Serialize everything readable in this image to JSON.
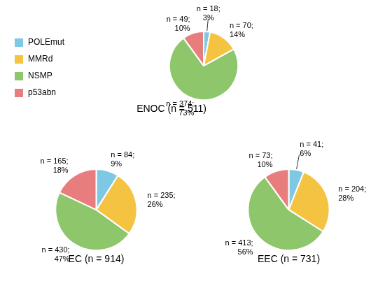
{
  "chart_data": [
    {
      "type": "pie",
      "title": "ENOC (n = 511)",
      "categories": [
        "POLEmut",
        "MMRd",
        "NSMP",
        "p53abn"
      ],
      "values": [
        3,
        14,
        73,
        10
      ],
      "colors": [
        "#7ec8e3",
        "#f5c342",
        "#8dc66b",
        "#e87d7d"
      ],
      "data_labels": true,
      "value_labels": [
        "n = 18;\n3%",
        "n = 70;\n14%",
        "n = 374;\n73%",
        "n = 49;\n10%"
      ],
      "legend": "upper left"
    },
    {
      "type": "pie",
      "title": "EC (n = 914)",
      "categories": [
        "POLEmut",
        "MMRd",
        "NSMP",
        "p53abn"
      ],
      "values": [
        9,
        26,
        47,
        18
      ],
      "colors": [
        "#7ec8e3",
        "#f5c342",
        "#8dc66b",
        "#e87d7d"
      ],
      "data_labels": true,
      "value_labels": [
        "n = 84;\n9%",
        "n = 235;\n26%",
        "n = 430;\n47%",
        "n = 165;\n18%"
      ]
    },
    {
      "type": "pie",
      "title": "EEC (n = 731)",
      "categories": [
        "POLEmut",
        "MMRd",
        "NSMP",
        "p53abn"
      ],
      "values": [
        6,
        28,
        56,
        10
      ],
      "colors": [
        "#7ec8e3",
        "#f5c342",
        "#8dc66b",
        "#e87d7d"
      ],
      "data_labels": true,
      "value_labels": [
        "n = 41;\n6%",
        "n = 204;\n28%",
        "n = 413;\n56%",
        "n = 73;\n10%"
      ]
    }
  ]
}
